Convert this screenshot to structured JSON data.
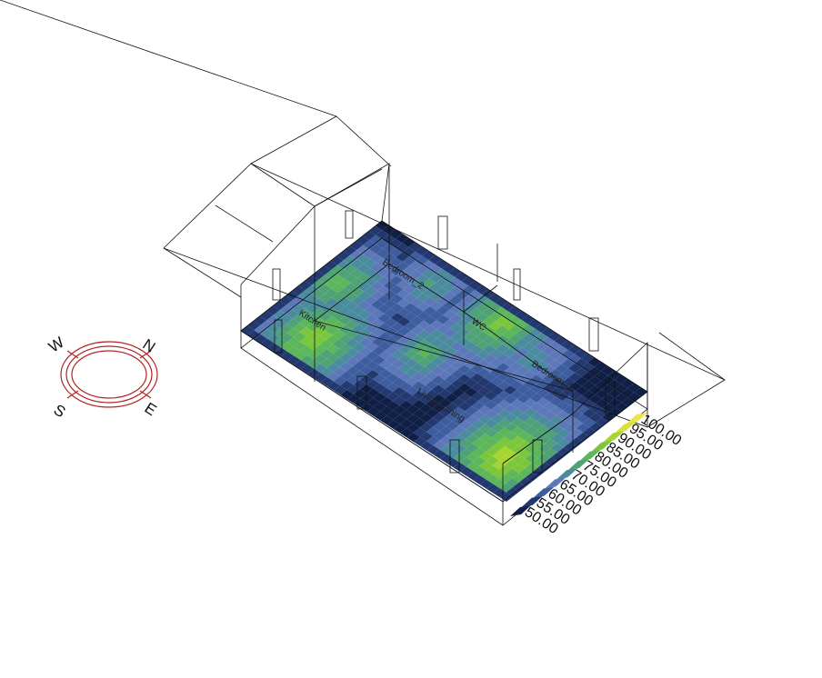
{
  "rooms": [
    {
      "name": "Kitchen"
    },
    {
      "name": "Bedroom_2"
    },
    {
      "name": "WC"
    },
    {
      "name": "Bedroom_1"
    },
    {
      "name": "Living_Dining"
    }
  ],
  "compass": {
    "n": "N",
    "e": "E",
    "s": "S",
    "w": "W",
    "ring_color": "#b22222"
  },
  "legend": {
    "ticks": [
      "100.00",
      "95.00",
      "90.00",
      "85.00",
      "80.00",
      "75.00",
      "70.00",
      "65.00",
      "60.00",
      "55.00",
      "50.00"
    ],
    "colors": [
      "#f0e24a",
      "#d8e03c",
      "#a6d431",
      "#7cc63c",
      "#5cb65a",
      "#4ea276",
      "#4b8b9e",
      "#5c78b8",
      "#3e5d9f",
      "#22386e",
      "#0f1f45"
    ]
  },
  "heatmap": {
    "min": 50,
    "max": 100,
    "hotspots": [
      {
        "room": "Kitchen",
        "value": 82
      },
      {
        "room": "Bedroom_2",
        "value": 88
      },
      {
        "room": "WC",
        "value": 78
      },
      {
        "room": "Bedroom_1",
        "value": 92
      },
      {
        "room": "Living_Dining",
        "value": 86
      }
    ]
  }
}
